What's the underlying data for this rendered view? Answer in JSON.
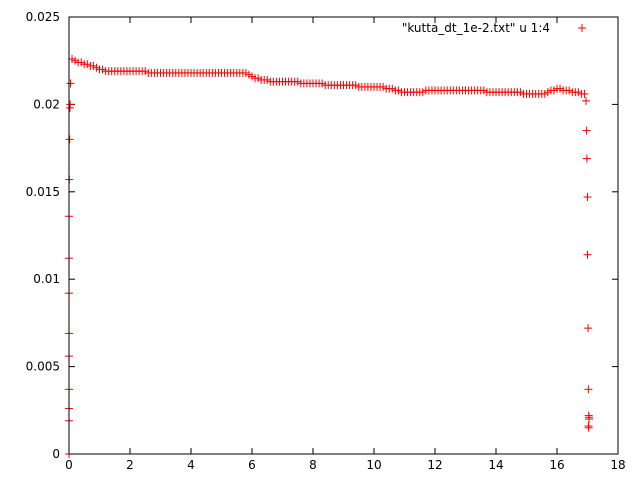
{
  "chart_data": {
    "type": "scatter",
    "title": "",
    "xlabel": "",
    "ylabel": "",
    "xlim": [
      0,
      18
    ],
    "ylim": [
      0,
      0.025
    ],
    "grid": false,
    "legend_position": "top-right",
    "x_ticks": [
      "0",
      "2",
      "4",
      "6",
      "8",
      "10",
      "12",
      "14",
      "16",
      "18"
    ],
    "y_ticks": [
      "0",
      "0.005",
      "0.01",
      "0.015",
      "0.02",
      "0.025"
    ],
    "series": [
      {
        "name": "\"kutta_dt_1e-2.txt\" u  1:4",
        "color": "#ff0000",
        "marker": "plus",
        "points": [
          [
            0.0,
            0.0
          ],
          [
            0.0,
            0.0019
          ],
          [
            0.0,
            0.0026
          ],
          [
            0.0,
            0.0037
          ],
          [
            0.0,
            0.0056
          ],
          [
            0.0,
            0.0069
          ],
          [
            0.0,
            0.0092
          ],
          [
            0.0,
            0.0112
          ],
          [
            0.0,
            0.0136
          ],
          [
            0.01,
            0.0157
          ],
          [
            0.02,
            0.018
          ],
          [
            0.03,
            0.0198
          ],
          [
            0.04,
            0.02
          ],
          [
            0.05,
            0.0212
          ],
          [
            0.1,
            0.0226
          ],
          [
            0.2,
            0.0225
          ],
          [
            0.3,
            0.0224
          ],
          [
            0.4,
            0.0224
          ],
          [
            0.5,
            0.0223
          ],
          [
            0.6,
            0.0223
          ],
          [
            0.7,
            0.0222
          ],
          [
            0.8,
            0.0222
          ],
          [
            0.9,
            0.0221
          ],
          [
            1.0,
            0.022
          ],
          [
            1.1,
            0.022
          ],
          [
            1.2,
            0.0219
          ],
          [
            1.3,
            0.0219
          ],
          [
            1.4,
            0.0219
          ],
          [
            1.5,
            0.0219
          ],
          [
            1.6,
            0.0219
          ],
          [
            1.7,
            0.0219
          ],
          [
            1.8,
            0.0219
          ],
          [
            1.9,
            0.0219
          ],
          [
            2.0,
            0.0219
          ],
          [
            2.1,
            0.0219
          ],
          [
            2.2,
            0.0219
          ],
          [
            2.3,
            0.0219
          ],
          [
            2.4,
            0.0219
          ],
          [
            2.5,
            0.0219
          ],
          [
            2.6,
            0.0218
          ],
          [
            2.7,
            0.0218
          ],
          [
            2.8,
            0.0218
          ],
          [
            2.9,
            0.0218
          ],
          [
            3.0,
            0.0218
          ],
          [
            3.1,
            0.0218
          ],
          [
            3.2,
            0.0218
          ],
          [
            3.3,
            0.0218
          ],
          [
            3.4,
            0.0218
          ],
          [
            3.5,
            0.0218
          ],
          [
            3.6,
            0.0218
          ],
          [
            3.7,
            0.0218
          ],
          [
            3.8,
            0.0218
          ],
          [
            3.9,
            0.0218
          ],
          [
            4.0,
            0.0218
          ],
          [
            4.1,
            0.0218
          ],
          [
            4.2,
            0.0218
          ],
          [
            4.3,
            0.0218
          ],
          [
            4.4,
            0.0218
          ],
          [
            4.5,
            0.0218
          ],
          [
            4.6,
            0.0218
          ],
          [
            4.7,
            0.0218
          ],
          [
            4.8,
            0.0218
          ],
          [
            4.9,
            0.0218
          ],
          [
            5.0,
            0.0218
          ],
          [
            5.1,
            0.0218
          ],
          [
            5.2,
            0.0218
          ],
          [
            5.3,
            0.0218
          ],
          [
            5.4,
            0.0218
          ],
          [
            5.5,
            0.0218
          ],
          [
            5.6,
            0.0218
          ],
          [
            5.7,
            0.0218
          ],
          [
            5.8,
            0.0218
          ],
          [
            5.9,
            0.0217
          ],
          [
            6.0,
            0.0216
          ],
          [
            6.1,
            0.0215
          ],
          [
            6.2,
            0.0215
          ],
          [
            6.3,
            0.0214
          ],
          [
            6.4,
            0.0214
          ],
          [
            6.5,
            0.0214
          ],
          [
            6.6,
            0.0213
          ],
          [
            6.7,
            0.0213
          ],
          [
            6.8,
            0.0213
          ],
          [
            6.9,
            0.0213
          ],
          [
            7.0,
            0.0213
          ],
          [
            7.1,
            0.0213
          ],
          [
            7.2,
            0.0213
          ],
          [
            7.3,
            0.0213
          ],
          [
            7.4,
            0.0213
          ],
          [
            7.5,
            0.0213
          ],
          [
            7.6,
            0.0212
          ],
          [
            7.7,
            0.0212
          ],
          [
            7.8,
            0.0212
          ],
          [
            7.9,
            0.0212
          ],
          [
            8.0,
            0.0212
          ],
          [
            8.1,
            0.0212
          ],
          [
            8.2,
            0.0212
          ],
          [
            8.3,
            0.0212
          ],
          [
            8.4,
            0.0211
          ],
          [
            8.5,
            0.0211
          ],
          [
            8.6,
            0.0211
          ],
          [
            8.7,
            0.0211
          ],
          [
            8.8,
            0.0211
          ],
          [
            8.9,
            0.0211
          ],
          [
            9.0,
            0.0211
          ],
          [
            9.1,
            0.0211
          ],
          [
            9.2,
            0.0211
          ],
          [
            9.3,
            0.0211
          ],
          [
            9.4,
            0.0211
          ],
          [
            9.5,
            0.021
          ],
          [
            9.6,
            0.021
          ],
          [
            9.7,
            0.021
          ],
          [
            9.8,
            0.021
          ],
          [
            9.9,
            0.021
          ],
          [
            10.0,
            0.021
          ],
          [
            10.1,
            0.021
          ],
          [
            10.2,
            0.021
          ],
          [
            10.3,
            0.021
          ],
          [
            10.4,
            0.0209
          ],
          [
            10.5,
            0.0209
          ],
          [
            10.6,
            0.0209
          ],
          [
            10.7,
            0.0208
          ],
          [
            10.8,
            0.0208
          ],
          [
            10.9,
            0.0207
          ],
          [
            11.0,
            0.0207
          ],
          [
            11.1,
            0.0207
          ],
          [
            11.2,
            0.0207
          ],
          [
            11.3,
            0.0207
          ],
          [
            11.4,
            0.0207
          ],
          [
            11.5,
            0.0207
          ],
          [
            11.6,
            0.0207
          ],
          [
            11.7,
            0.0208
          ],
          [
            11.8,
            0.0208
          ],
          [
            11.9,
            0.0208
          ],
          [
            12.0,
            0.0208
          ],
          [
            12.1,
            0.0208
          ],
          [
            12.2,
            0.0208
          ],
          [
            12.3,
            0.0208
          ],
          [
            12.4,
            0.0208
          ],
          [
            12.5,
            0.0208
          ],
          [
            12.6,
            0.0208
          ],
          [
            12.7,
            0.0208
          ],
          [
            12.8,
            0.0208
          ],
          [
            12.9,
            0.0208
          ],
          [
            13.0,
            0.0208
          ],
          [
            13.1,
            0.0208
          ],
          [
            13.2,
            0.0208
          ],
          [
            13.3,
            0.0208
          ],
          [
            13.4,
            0.0208
          ],
          [
            13.5,
            0.0208
          ],
          [
            13.6,
            0.0208
          ],
          [
            13.7,
            0.0207
          ],
          [
            13.8,
            0.0207
          ],
          [
            13.9,
            0.0207
          ],
          [
            14.0,
            0.0207
          ],
          [
            14.1,
            0.0207
          ],
          [
            14.2,
            0.0207
          ],
          [
            14.3,
            0.0207
          ],
          [
            14.4,
            0.0207
          ],
          [
            14.5,
            0.0207
          ],
          [
            14.6,
            0.0207
          ],
          [
            14.7,
            0.0207
          ],
          [
            14.8,
            0.0207
          ],
          [
            14.9,
            0.0206
          ],
          [
            15.0,
            0.0206
          ],
          [
            15.1,
            0.0206
          ],
          [
            15.2,
            0.0206
          ],
          [
            15.3,
            0.0206
          ],
          [
            15.4,
            0.0206
          ],
          [
            15.5,
            0.0206
          ],
          [
            15.6,
            0.0206
          ],
          [
            15.7,
            0.0207
          ],
          [
            15.8,
            0.0208
          ],
          [
            15.9,
            0.0208
          ],
          [
            16.0,
            0.0209
          ],
          [
            16.1,
            0.0209
          ],
          [
            16.2,
            0.0208
          ],
          [
            16.3,
            0.0208
          ],
          [
            16.4,
            0.0208
          ],
          [
            16.5,
            0.0207
          ],
          [
            16.6,
            0.0207
          ],
          [
            16.7,
            0.0207
          ],
          [
            16.8,
            0.0206
          ],
          [
            16.9,
            0.0206
          ],
          [
            16.95,
            0.0202
          ],
          [
            16.97,
            0.0185
          ],
          [
            16.98,
            0.0169
          ],
          [
            17.0,
            0.0147
          ],
          [
            17.0,
            0.0114
          ],
          [
            17.02,
            0.0072
          ],
          [
            17.03,
            0.0037
          ],
          [
            17.04,
            0.0022
          ],
          [
            17.05,
            0.0021
          ],
          [
            17.05,
            0.002
          ],
          [
            17.03,
            0.0016
          ],
          [
            17.04,
            0.0015
          ]
        ]
      }
    ]
  }
}
